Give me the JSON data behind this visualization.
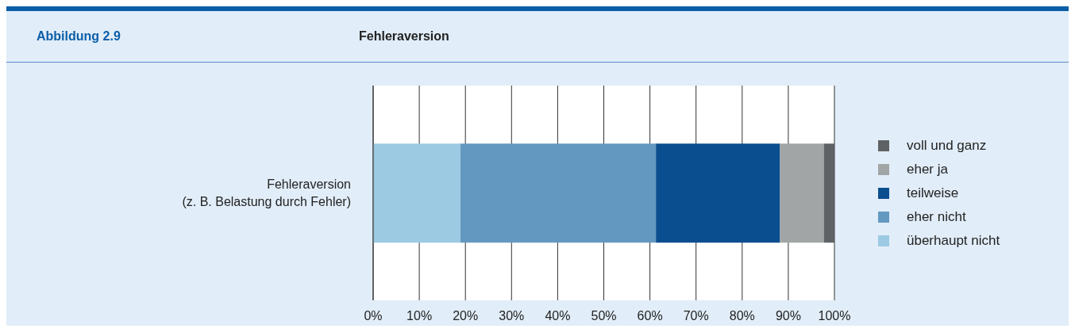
{
  "chart_data": {
    "type": "bar",
    "orientation": "horizontal",
    "stacked": true,
    "title": "Fehleraversion",
    "annotations": [
      "Abbildung 2.9"
    ],
    "categories": [
      "Fehleraversion\n(z. B. Belastung durch Fehler)"
    ],
    "series": [
      {
        "name": "überhaupt nicht",
        "color": "#9ccae2",
        "values": [
          18.9
        ]
      },
      {
        "name": "eher nicht",
        "color": "#6399c0",
        "values": [
          42.4
        ]
      },
      {
        "name": "teilweise",
        "color": "#0b4e8f",
        "values": [
          26.9
        ]
      },
      {
        "name": "eher ja",
        "color": "#a2a5a6",
        "values": [
          9.5
        ]
      },
      {
        "name": "voll und ganz",
        "color": "#5f6264",
        "values": [
          2.3
        ]
      }
    ],
    "xlim": [
      0,
      100
    ],
    "xticks": [
      {
        "value": 0,
        "label": "0%"
      },
      {
        "value": 10,
        "label": "10%"
      },
      {
        "value": 20,
        "label": "20%"
      },
      {
        "value": 30,
        "label": "30%"
      },
      {
        "value": 40,
        "label": "40%"
      },
      {
        "value": 50,
        "label": "50%"
      },
      {
        "value": 60,
        "label": "60%"
      },
      {
        "value": 70,
        "label": "70%"
      },
      {
        "value": 80,
        "label": "80%"
      },
      {
        "value": 90,
        "label": "90%"
      },
      {
        "value": 100,
        "label": "100%"
      }
    ],
    "grid": "x",
    "legend": "right"
  }
}
